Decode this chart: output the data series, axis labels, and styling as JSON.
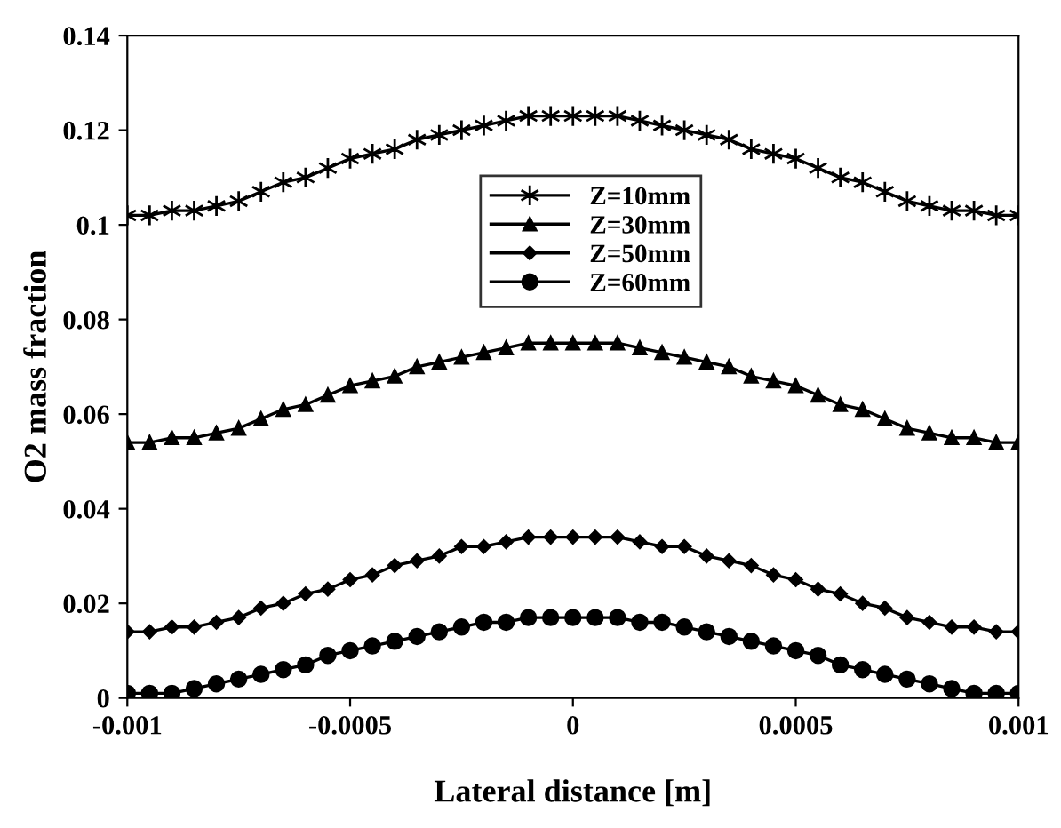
{
  "chart_data": {
    "type": "line",
    "xlabel": "Lateral distance [m]",
    "ylabel": "O2 mass fraction",
    "x": [
      -0.001,
      -0.00095,
      -0.0009,
      -0.00085,
      -0.0008,
      -0.00075,
      -0.0007,
      -0.00065,
      -0.0006,
      -0.00055,
      -0.0005,
      -0.00045,
      -0.0004,
      -0.00035,
      -0.0003,
      -0.00025,
      -0.0002,
      -0.00015,
      -0.0001,
      -5e-05,
      0,
      5e-05,
      0.0001,
      0.00015,
      0.0002,
      0.00025,
      0.0003,
      0.00035,
      0.0004,
      0.00045,
      0.0005,
      0.00055,
      0.0006,
      0.00065,
      0.0007,
      0.00075,
      0.0008,
      0.00085,
      0.0009,
      0.00095,
      0.001
    ],
    "series": [
      {
        "name": "Z=10mm",
        "color": "#000000",
        "marker": "cross",
        "values": [
          0.102,
          0.102,
          0.103,
          0.103,
          0.104,
          0.105,
          0.107,
          0.109,
          0.11,
          0.112,
          0.114,
          0.115,
          0.116,
          0.118,
          0.119,
          0.12,
          0.121,
          0.122,
          0.123,
          0.123,
          0.123,
          0.123,
          0.123,
          0.122,
          0.121,
          0.12,
          0.119,
          0.118,
          0.116,
          0.115,
          0.114,
          0.112,
          0.11,
          0.109,
          0.107,
          0.105,
          0.104,
          0.103,
          0.103,
          0.102,
          0.102
        ]
      },
      {
        "name": "Z=30mm",
        "color": "#000000",
        "marker": "triangle",
        "values": [
          0.054,
          0.054,
          0.055,
          0.055,
          0.056,
          0.057,
          0.059,
          0.061,
          0.062,
          0.064,
          0.066,
          0.067,
          0.068,
          0.07,
          0.071,
          0.072,
          0.073,
          0.074,
          0.075,
          0.075,
          0.075,
          0.075,
          0.075,
          0.074,
          0.073,
          0.072,
          0.071,
          0.07,
          0.068,
          0.067,
          0.066,
          0.064,
          0.062,
          0.061,
          0.059,
          0.057,
          0.056,
          0.055,
          0.055,
          0.054,
          0.054
        ]
      },
      {
        "name": "Z=50mm",
        "color": "#000000",
        "marker": "diamond",
        "values": [
          0.014,
          0.014,
          0.015,
          0.015,
          0.016,
          0.017,
          0.019,
          0.02,
          0.022,
          0.023,
          0.025,
          0.026,
          0.028,
          0.029,
          0.03,
          0.032,
          0.032,
          0.033,
          0.034,
          0.034,
          0.034,
          0.034,
          0.034,
          0.033,
          0.032,
          0.032,
          0.03,
          0.029,
          0.028,
          0.026,
          0.025,
          0.023,
          0.022,
          0.02,
          0.019,
          0.017,
          0.016,
          0.015,
          0.015,
          0.014,
          0.014
        ]
      },
      {
        "name": "Z=60mm",
        "color": "#000000",
        "marker": "circle",
        "values": [
          0.001,
          0.001,
          0.001,
          0.002,
          0.003,
          0.004,
          0.005,
          0.006,
          0.007,
          0.009,
          0.01,
          0.011,
          0.012,
          0.013,
          0.014,
          0.015,
          0.016,
          0.016,
          0.017,
          0.017,
          0.017,
          0.017,
          0.017,
          0.016,
          0.016,
          0.015,
          0.014,
          0.013,
          0.012,
          0.011,
          0.01,
          0.009,
          0.007,
          0.006,
          0.005,
          0.004,
          0.003,
          0.002,
          0.001,
          0.001,
          0.001
        ]
      }
    ],
    "xlim": [
      -0.001,
      0.001
    ],
    "xticks": [
      -0.001,
      -0.0005,
      0,
      0.0005,
      0.001
    ],
    "ylim": [
      0,
      0.14
    ],
    "yticks": [
      0,
      0.02,
      0.04,
      0.06,
      0.08,
      0.1,
      0.12,
      0.14
    ],
    "legend": "top",
    "grid": false,
    "line_style": "solid"
  }
}
